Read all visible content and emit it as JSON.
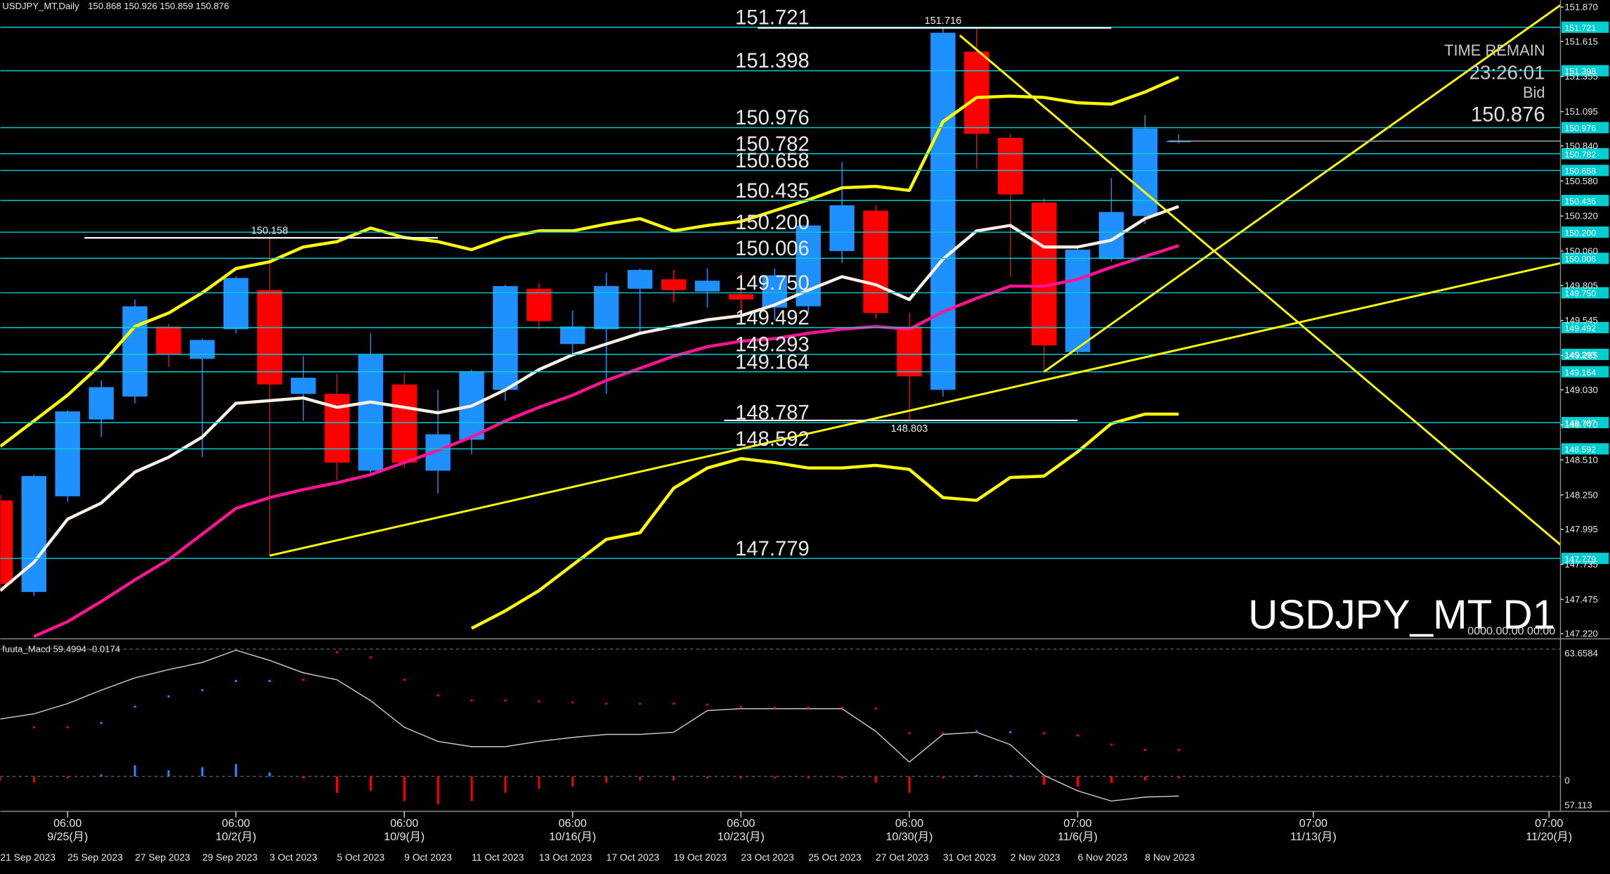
{
  "chart_data": [
    {
      "type": "candlestick",
      "title": "USDJPY_MT,Daily",
      "categories": [
        "21 Sep 2023",
        null,
        "25 Sep 2023",
        null,
        "27 Sep 2023",
        null,
        "29 Sep 2023",
        null,
        "3 Oct 2023",
        null,
        "5 Oct 2023",
        null,
        "9 Oct 2023",
        null,
        "11 Oct 2023",
        null,
        "13 Oct 2023",
        null,
        "17 Oct 2023",
        null,
        "19 Oct 2023",
        null,
        "23 Oct 2023",
        null,
        "25 Oct 2023",
        null,
        "27 Oct 2023",
        null,
        "31 Oct 2023",
        null,
        "2 Nov 2023",
        null,
        "6 Nov 2023",
        null,
        "8 Nov 2023",
        null
      ],
      "ohlc": {
        "open": [
          148.21,
          147.53,
          148.24,
          148.81,
          148.98,
          149.5,
          149.26,
          149.48,
          149.77,
          149.0,
          149.0,
          148.43,
          149.07,
          148.43,
          148.66,
          149.03,
          149.78,
          149.37,
          149.48,
          149.78,
          149.85,
          149.76,
          149.74,
          149.64,
          149.65,
          150.06,
          150.36,
          149.5,
          149.03,
          151.54,
          150.9,
          150.42,
          149.31,
          150.0,
          150.32,
          150.868
        ],
        "high": [
          148.25,
          148.4,
          148.88,
          149.1,
          149.7,
          149.52,
          149.41,
          149.87,
          150.158,
          149.28,
          149.15,
          149.45,
          149.15,
          149.03,
          149.18,
          149.81,
          149.82,
          149.62,
          149.9,
          149.93,
          149.92,
          149.93,
          149.9,
          149.93,
          150.29,
          150.72,
          150.4,
          149.6,
          151.716,
          151.72,
          150.93,
          150.45,
          150.1,
          150.6,
          151.07,
          150.926
        ],
        "low": [
          147.55,
          147.5,
          148.2,
          148.68,
          148.93,
          149.2,
          148.53,
          149.45,
          147.8,
          148.8,
          148.36,
          148.4,
          148.45,
          148.26,
          148.55,
          148.95,
          149.48,
          149.28,
          149.0,
          149.45,
          149.68,
          149.64,
          149.6,
          149.55,
          149.6,
          149.97,
          149.56,
          148.803,
          148.98,
          150.67,
          149.87,
          149.164,
          149.29,
          149.98,
          150.26,
          150.859
        ],
        "close": [
          147.59,
          148.39,
          148.87,
          149.05,
          149.65,
          149.29,
          149.4,
          149.86,
          149.07,
          149.12,
          148.49,
          149.29,
          148.49,
          148.7,
          149.16,
          149.8,
          149.54,
          149.5,
          149.8,
          149.92,
          149.77,
          149.84,
          149.7,
          149.88,
          150.25,
          150.4,
          149.6,
          149.13,
          151.68,
          150.93,
          150.48,
          149.36,
          150.07,
          150.35,
          150.97,
          150.876
        ]
      },
      "up_color": "#1e90ff",
      "down_color": "#ff0000",
      "indicators": [
        {
          "color": "#ffff00",
          "values": [
            148.61,
            148.8,
            148.99,
            149.22,
            149.5,
            149.6,
            149.75,
            149.93,
            149.98,
            150.09,
            150.13,
            150.23,
            150.16,
            150.13,
            150.07,
            150.16,
            150.21,
            150.21,
            150.26,
            150.3,
            150.21,
            150.25,
            150.28,
            150.36,
            150.44,
            150.53,
            150.54,
            150.51,
            151.02,
            151.2,
            151.21,
            151.2,
            151.16,
            151.15,
            151.24,
            151.35
          ]
        },
        {
          "color": "#ffff00",
          "values": [
            null,
            null,
            null,
            null,
            null,
            null,
            null,
            null,
            null,
            null,
            null,
            null,
            null,
            null,
            147.26,
            147.39,
            147.54,
            147.73,
            147.92,
            147.97,
            148.3,
            148.45,
            148.52,
            148.49,
            148.45,
            148.45,
            148.47,
            148.44,
            148.23,
            148.21,
            148.38,
            148.39,
            148.57,
            148.78,
            148.85,
            148.85
          ]
        },
        {
          "color": "#ff1493",
          "values": [
            null,
            147.2,
            147.31,
            147.46,
            147.62,
            147.77,
            147.96,
            148.15,
            148.23,
            148.29,
            148.34,
            148.4,
            148.49,
            148.58,
            148.68,
            148.8,
            148.9,
            148.99,
            149.1,
            149.19,
            149.28,
            149.35,
            149.39,
            149.41,
            149.45,
            149.48,
            149.5,
            149.48,
            149.61,
            149.71,
            149.8,
            149.8,
            149.85,
            149.94,
            150.02,
            150.1
          ]
        },
        {
          "color": "#fff0e6",
          "values": [
            147.54,
            147.75,
            148.07,
            148.19,
            148.42,
            148.53,
            148.68,
            148.93,
            148.95,
            148.97,
            148.9,
            148.94,
            148.9,
            148.86,
            148.91,
            149.03,
            149.18,
            149.29,
            149.37,
            149.45,
            149.5,
            149.55,
            149.58,
            149.66,
            149.77,
            149.87,
            149.81,
            149.7,
            150.0,
            150.21,
            150.25,
            150.09,
            150.09,
            150.14,
            150.3,
            150.39
          ]
        }
      ],
      "trendline_color": "#ffff00",
      "trendlines": [
        {
          "x": [
            8,
            46.34
          ],
          "y": [
            147.8,
            149.97
          ]
        },
        {
          "x": [
            31,
            46.34
          ],
          "y": [
            149.164,
            151.885
          ]
        },
        {
          "x": [
            28.5,
            46.34
          ],
          "y": [
            151.66,
            147.88
          ]
        }
      ],
      "level_color": "#00ced1",
      "levels": [
        151.721,
        151.398,
        150.976,
        150.782,
        150.658,
        150.435,
        {
          "value": 150.2,
          "label": "150.200"
        },
        150.006,
        {
          "value": 149.75,
          "label": "149.750"
        },
        149.492,
        149.293,
        149.164,
        148.787,
        148.592,
        147.779
      ],
      "annotations": [
        151.716,
        150.158,
        148.803
      ],
      "ylim": [
        147.19,
        151.923
      ],
      "yticks": [
        {
          "value": 151.87,
          "label": "151.870"
        },
        151.615,
        151.355,
        151.095,
        {
          "value": 150.84,
          "label": "150.840"
        },
        {
          "value": 150.58,
          "label": "150.580"
        },
        {
          "value": 150.32,
          "label": "150.320"
        },
        {
          "value": 150.06,
          "label": "150.060"
        },
        149.805,
        149.545,
        149.285,
        {
          "value": 149.03,
          "label": "149.030"
        },
        {
          "value": 148.77,
          "label": "148.770"
        },
        {
          "value": 148.51,
          "label": "148.510"
        },
        {
          "value": 148.25,
          "label": "148.250"
        },
        147.995,
        147.735,
        147.475,
        {
          "value": 147.22,
          "label": "147.220"
        }
      ],
      "xlim": [
        0,
        46.34
      ],
      "xticks": [
        {
          "value": 2,
          "time": "06:00",
          "date": "9/25(月)"
        },
        {
          "value": 7,
          "time": "06:00",
          "date": "10/2(月)"
        },
        {
          "value": 12,
          "time": "06:00",
          "date": "10/9(月)"
        },
        {
          "value": 17,
          "time": "06:00",
          "date": "10/16(月)"
        },
        {
          "value": 22,
          "time": "06:00",
          "date": "10/23(月)"
        },
        {
          "value": 27,
          "time": "06:00",
          "date": "10/30(月)"
        },
        {
          "value": 32,
          "time": "07:00",
          "date": "11/6(月)"
        },
        {
          "value": 39,
          "time": "07:00",
          "date": "11/13(月)"
        },
        {
          "value": 46,
          "time": "07:00",
          "date": "11/20(月)"
        }
      ],
      "info": {
        "label": "TIME REMAIN",
        "time": "23:26:01",
        "bid_label": "Bid"
      },
      "watermark": "USDJPY_MT D1",
      "watermark_time": "0000.00.00 00:00"
    },
    {
      "type": "macd",
      "title": "fuuta_Macd 59.4994  -0.0174",
      "line_color": "#c8c8c8",
      "line": [
        28.7,
        31.3,
        36.4,
        43.1,
        49.3,
        53.4,
        57.0,
        63.1,
        58.0,
        51.8,
        48.3,
        37.9,
        24.6,
        17.5,
        14.9,
        14.9,
        17.5,
        19.5,
        21.0,
        21.0,
        22.1,
        32.9,
        33.9,
        33.9,
        33.9,
        33.9,
        22.6,
        7.2,
        21.0,
        22.1,
        15.9,
        0.5,
        -7.2,
        -12.3,
        -10.3,
        -9.8
      ],
      "signal": [
        null,
        24.6,
        24.6,
        26.7,
        34.9,
        40.0,
        43.1,
        47.7,
        47.7,
        48.3,
        62.1,
        59.5,
        48.3,
        40.6,
        38.0,
        38.0,
        37.5,
        37.0,
        36.4,
        36.4,
        36.4,
        35.9,
        34.9,
        34.4,
        34.4,
        34.4,
        33.9,
        21.6,
        21.6,
        22.6,
        22.1,
        21.6,
        20.5,
        15.9,
        13.3,
        13.3
      ],
      "histogram": [
        -2.0,
        -3.1,
        -1.0,
        1.0,
        5.6,
        3.1,
        4.6,
        6.2,
        2.0,
        -1.0,
        -8.2,
        -7.2,
        -12.3,
        -13.9,
        -12.3,
        -8.2,
        -6.2,
        -5.1,
        -3.1,
        -2.0,
        -2.0,
        -1.0,
        -1.0,
        -1.0,
        -1.0,
        -1.0,
        -3.1,
        -8.2,
        -1.0,
        0.5,
        0.5,
        -4.1,
        -5.1,
        -3.1,
        -2.0,
        -1.0
      ],
      "up_color": "#1e90ff",
      "down_color": "#ff0000",
      "ylim": [
        -17.45,
        67.25
      ],
      "yticks": [
        63.6584,
        0
      ],
      "bottom_label": "57.113"
    }
  ]
}
